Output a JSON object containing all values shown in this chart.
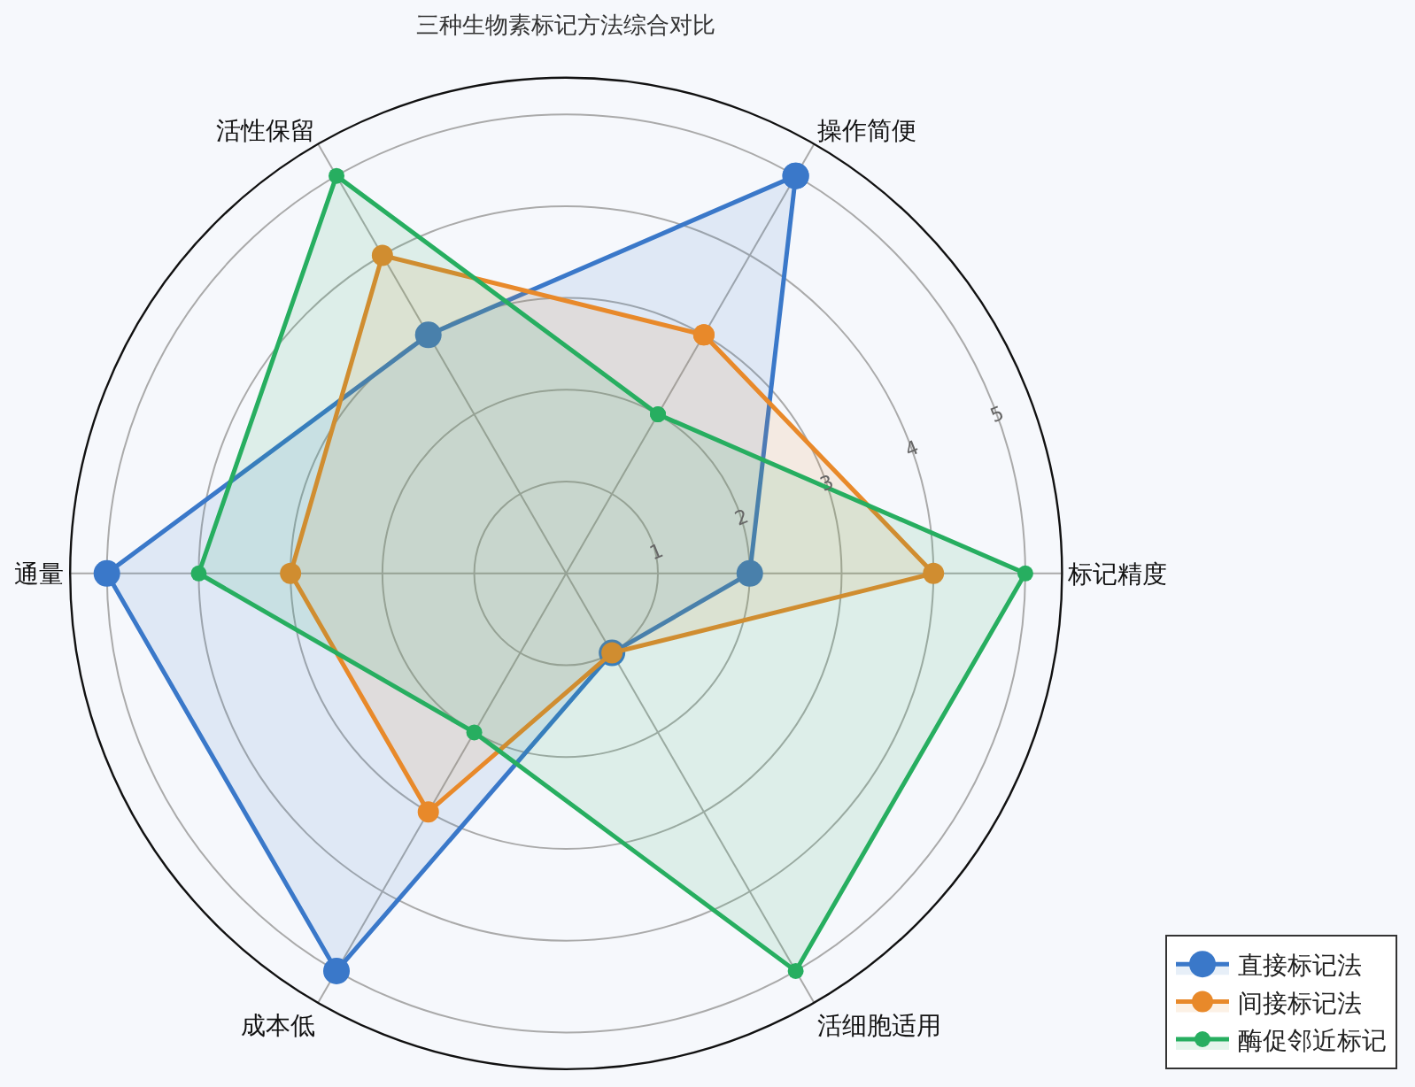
{
  "chart_data": {
    "type": "radar",
    "title": "三种生物素标记方法综合对比",
    "categories": [
      "操作简便",
      "标记精度",
      "活细胞适用",
      "成本低",
      "通量",
      "活性保留"
    ],
    "series": [
      {
        "name": "直接标记法",
        "color": "#3a78c9",
        "values": [
          5,
          2,
          1,
          5,
          5,
          3
        ]
      },
      {
        "name": "间接标记法",
        "color": "#e8892a",
        "values": [
          3,
          4,
          1,
          3,
          3,
          4
        ]
      },
      {
        "name": "酶促邻近标记",
        "color": "#27ae60",
        "values": [
          2,
          5,
          5,
          2,
          4,
          5
        ]
      }
    ],
    "ylim": [
      0,
      5.4
    ],
    "yticks": [
      1,
      2,
      3,
      4,
      5
    ],
    "grid": true,
    "legend": "bottom right",
    "marker": "circle",
    "line_style": "solid"
  }
}
